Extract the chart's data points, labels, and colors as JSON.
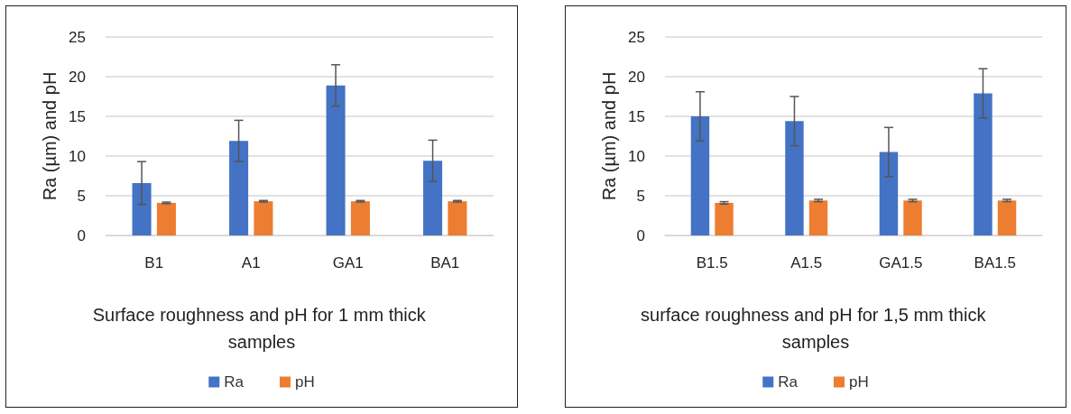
{
  "chart_data": [
    {
      "type": "bar",
      "title": "Surface roughness and pH for 1 mm thick samples",
      "ylabel": "Ra (µm) and pH",
      "categories": [
        "B1",
        "A1",
        "GA1",
        "BA1"
      ],
      "series": [
        {
          "name": "Ra",
          "color": "#4472c4",
          "values": [
            6.6,
            11.9,
            18.9,
            9.4
          ],
          "errors": [
            2.7,
            2.6,
            2.6,
            2.6
          ]
        },
        {
          "name": "pH",
          "color": "#ed7d31",
          "values": [
            4.1,
            4.3,
            4.3,
            4.3
          ],
          "errors": [
            0.1,
            0.1,
            0.1,
            0.1
          ]
        }
      ],
      "ylim": [
        0,
        25
      ],
      "yticks": [
        0,
        5,
        10,
        15,
        20,
        25
      ],
      "grid": "y",
      "legend": "bottom"
    },
    {
      "type": "bar",
      "title": "surface roughness and pH for 1,5 mm thick samples",
      "ylabel": "Ra (µm) and pH",
      "categories": [
        "B1.5",
        "A1.5",
        "GA1.5",
        "BA1.5"
      ],
      "series": [
        {
          "name": "Ra",
          "color": "#4472c4",
          "values": [
            15.0,
            14.4,
            10.5,
            17.9
          ],
          "errors": [
            3.1,
            3.1,
            3.1,
            3.1
          ]
        },
        {
          "name": "pH",
          "color": "#ed7d31",
          "values": [
            4.1,
            4.4,
            4.4,
            4.4
          ],
          "errors": [
            0.15,
            0.15,
            0.15,
            0.15
          ]
        }
      ],
      "ylim": [
        0,
        25
      ],
      "yticks": [
        0,
        5,
        10,
        15,
        20,
        25
      ],
      "grid": "y",
      "legend": "bottom"
    }
  ]
}
